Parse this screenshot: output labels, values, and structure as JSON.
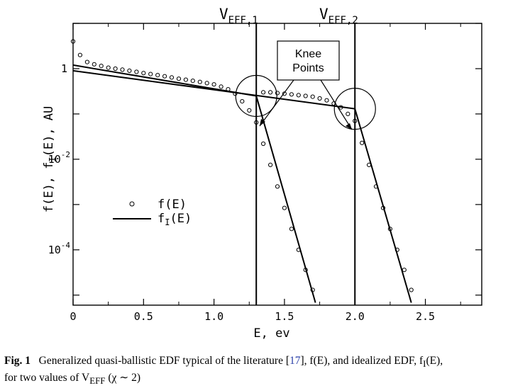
{
  "chart_data": {
    "type": "scatter",
    "xlabel": "E, ev",
    "ylabel": "f(E), f_I(E), AU",
    "ylabel_parts": {
      "a": "f(E), f",
      "sub": "I",
      "b": "(E), AU"
    },
    "x_ticks": [
      "0",
      "0.5",
      "1.0",
      "1.5",
      "2.0",
      "2.5"
    ],
    "x_tick_values": [
      0,
      0.5,
      1.0,
      1.5,
      2.0,
      2.5
    ],
    "y_ticks": [
      {
        "value": 1,
        "base": "1",
        "exp": ""
      },
      {
        "value": 0.01,
        "base": "10",
        "exp": "-2"
      },
      {
        "value": 0.0001,
        "base": "10",
        "exp": "-4"
      }
    ],
    "y_scale": "log",
    "xlim": [
      0,
      2.9
    ],
    "ylim": [
      6e-06,
      10
    ],
    "legend": {
      "items": [
        {
          "marker": "circle",
          "label": "f(E)",
          "label_a": "f(E)",
          "label_sub": ""
        },
        {
          "marker": "line",
          "label": "f_I(E)",
          "label_a": "f",
          "label_sub": "I",
          "label_b": "(E)"
        }
      ]
    },
    "vlines": [
      {
        "x": 1.3,
        "label_main": "V",
        "label_sub": "EFF,1"
      },
      {
        "x": 2.0,
        "label_main": "V",
        "label_sub": "EFF,2"
      }
    ],
    "annotation": {
      "line1": "Knee",
      "line2": "Points"
    },
    "knee_circles": [
      {
        "x": 1.3,
        "y": 0.25
      },
      {
        "x": 2.0,
        "y": 0.13
      }
    ],
    "series": [
      {
        "name": "f(E)",
        "style": "circles",
        "points": [
          [
            0.0,
            4.0
          ],
          [
            0.05,
            2.0
          ],
          [
            0.1,
            1.4
          ],
          [
            0.15,
            1.25
          ],
          [
            0.2,
            1.15
          ],
          [
            0.25,
            1.05
          ],
          [
            0.3,
            1.0
          ],
          [
            0.35,
            0.95
          ],
          [
            0.4,
            0.9
          ],
          [
            0.45,
            0.85
          ],
          [
            0.5,
            0.8
          ],
          [
            0.55,
            0.76
          ],
          [
            0.6,
            0.72
          ],
          [
            0.65,
            0.68
          ],
          [
            0.7,
            0.64
          ],
          [
            0.75,
            0.6
          ],
          [
            0.8,
            0.57
          ],
          [
            0.85,
            0.54
          ],
          [
            0.9,
            0.51
          ],
          [
            0.95,
            0.48
          ],
          [
            1.0,
            0.45
          ],
          [
            1.05,
            0.4
          ],
          [
            1.1,
            0.35
          ],
          [
            1.15,
            0.28
          ],
          [
            1.2,
            0.19
          ],
          [
            1.25,
            0.12
          ],
          [
            1.3,
            0.065
          ],
          [
            1.35,
            0.022
          ],
          [
            1.4,
            0.0075
          ],
          [
            1.45,
            0.0025
          ],
          [
            1.5,
            0.00084
          ],
          [
            1.55,
            0.00029
          ],
          [
            1.6,
            0.0001
          ],
          [
            1.65,
            3.6e-05
          ],
          [
            1.7,
            1.3e-05
          ],
          [
            1.35,
            0.3
          ],
          [
            1.4,
            0.3
          ],
          [
            1.45,
            0.29
          ],
          [
            1.5,
            0.28
          ],
          [
            1.55,
            0.27
          ],
          [
            1.6,
            0.26
          ],
          [
            1.65,
            0.25
          ],
          [
            1.7,
            0.24
          ],
          [
            1.75,
            0.22
          ],
          [
            1.8,
            0.2
          ],
          [
            1.85,
            0.17
          ],
          [
            1.9,
            0.14
          ],
          [
            1.95,
            0.1
          ],
          [
            2.0,
            0.07
          ],
          [
            2.05,
            0.023
          ],
          [
            2.1,
            0.0075
          ],
          [
            2.15,
            0.0025
          ],
          [
            2.2,
            0.00084
          ],
          [
            2.25,
            0.00029
          ],
          [
            2.3,
            0.0001
          ],
          [
            2.35,
            3.6e-05
          ],
          [
            2.4,
            1.3e-05
          ]
        ]
      },
      {
        "name": "f_I(E), V_EFF,1",
        "style": "line",
        "points": [
          [
            0.0,
            1.2
          ],
          [
            1.3,
            0.25
          ],
          [
            1.72,
            6.8e-06
          ]
        ]
      },
      {
        "name": "f_I(E), V_EFF,2",
        "style": "line",
        "points": [
          [
            0.0,
            0.9
          ],
          [
            2.0,
            0.13
          ],
          [
            2.4,
            6.8e-06
          ]
        ]
      }
    ]
  },
  "caption": {
    "label": "Fig. 1",
    "text_a": "Generalized quasi-ballistic EDF typical of the literature [",
    "ref": "17",
    "text_b": "], f(E), and idealized EDF, f",
    "sub_i": "I",
    "text_c": "(E),",
    "line2_a": "for two values of V",
    "sub_eff": "EFF",
    "line2_b": " (χ ∼ 2)"
  }
}
